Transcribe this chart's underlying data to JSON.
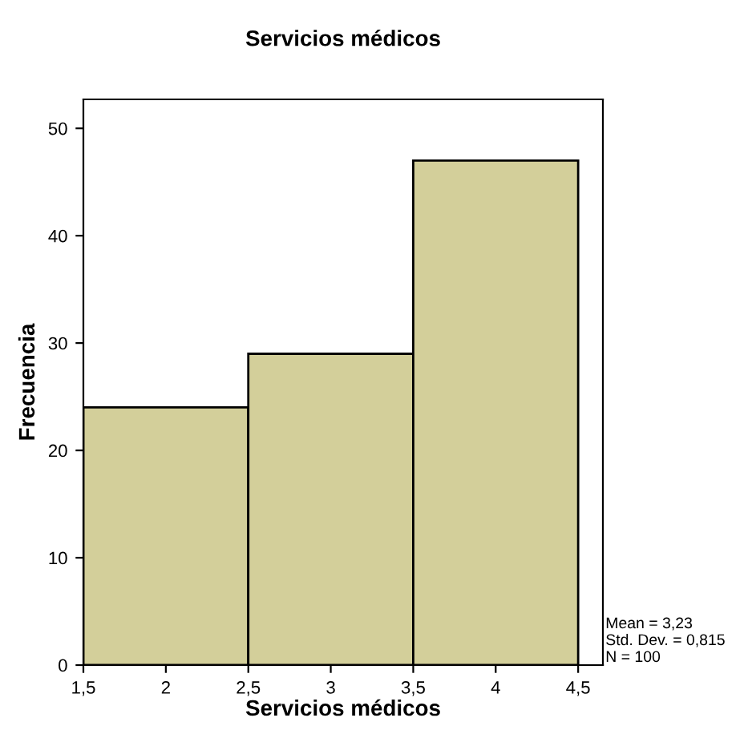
{
  "chart_data": {
    "type": "histogram",
    "title": "Servicios médicos",
    "xlabel": "Servicios médicos",
    "ylabel": "Frecuencia",
    "bins": [
      1.5,
      2.5,
      3.5,
      4.5
    ],
    "values": [
      24,
      29,
      47
    ],
    "color": "#d3cf9a",
    "xlim": [
      1.5,
      4.65
    ],
    "ylim": [
      0,
      52.7
    ],
    "xticks": [
      {
        "value": 1.5,
        "label": "1,5"
      },
      2,
      {
        "value": 2.5,
        "label": "2,5"
      },
      3,
      {
        "value": 3.5,
        "label": "3,5"
      },
      4,
      {
        "value": 4.5,
        "label": "4,5"
      }
    ],
    "yticks": [
      0,
      10,
      20,
      30,
      40,
      50
    ],
    "annotations": [
      "Mean = 3,23\nStd. Dev. = 0,815\nN = 100"
    ],
    "grid": false,
    "legend": false
  }
}
